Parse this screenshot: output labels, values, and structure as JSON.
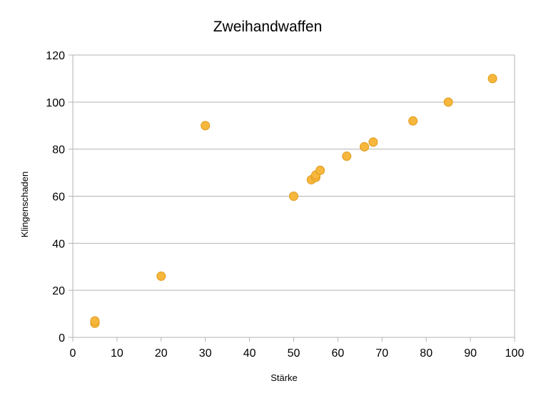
{
  "chart_data": {
    "type": "scatter",
    "title": "Zweihandwaffen",
    "xlabel": "Stärke",
    "ylabel": "Klingenschaden",
    "xlim": [
      0,
      100
    ],
    "ylim": [
      0,
      120
    ],
    "x_ticks": [
      0,
      10,
      20,
      30,
      40,
      50,
      60,
      70,
      80,
      90,
      100
    ],
    "y_ticks": [
      0,
      20,
      40,
      60,
      80,
      100,
      120
    ],
    "grid": "horizontal",
    "legend": "none",
    "marker_color": "#f6b73c",
    "marker_edge_color": "#e09a1c",
    "series": [
      {
        "points": [
          {
            "x": 5,
            "y": 6
          },
          {
            "x": 5,
            "y": 7
          },
          {
            "x": 20,
            "y": 26
          },
          {
            "x": 30,
            "y": 90
          },
          {
            "x": 50,
            "y": 60
          },
          {
            "x": 54,
            "y": 67
          },
          {
            "x": 55,
            "y": 68
          },
          {
            "x": 55,
            "y": 69
          },
          {
            "x": 56,
            "y": 71
          },
          {
            "x": 62,
            "y": 77
          },
          {
            "x": 66,
            "y": 81
          },
          {
            "x": 68,
            "y": 83
          },
          {
            "x": 77,
            "y": 92
          },
          {
            "x": 85,
            "y": 100
          },
          {
            "x": 95,
            "y": 110
          }
        ]
      }
    ]
  }
}
